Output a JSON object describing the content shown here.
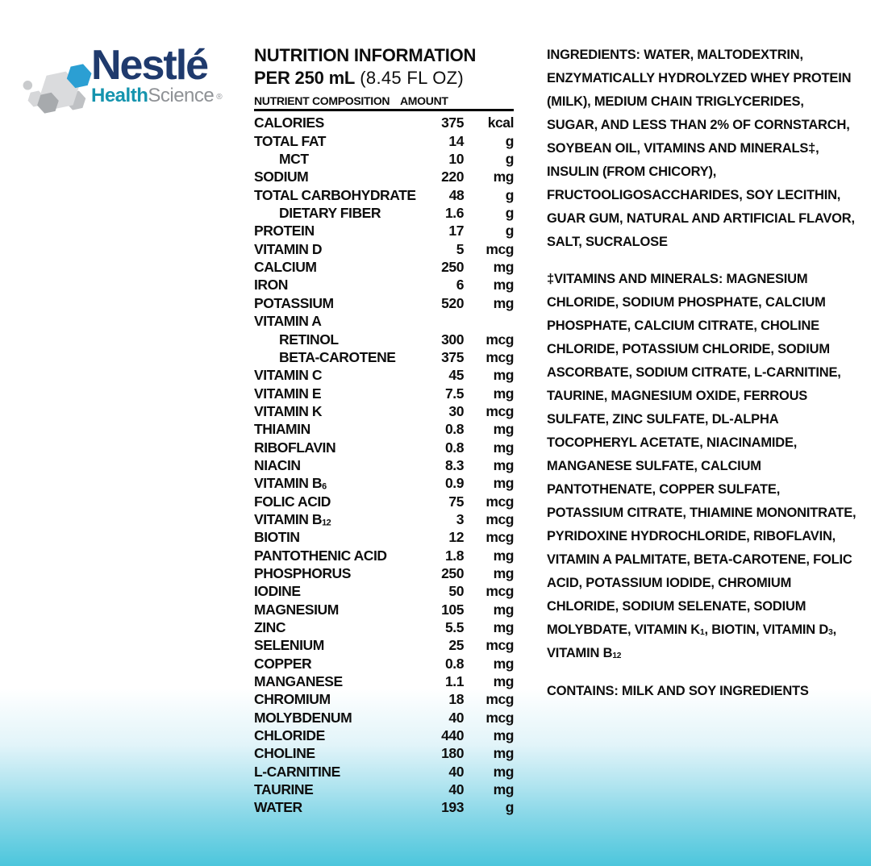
{
  "brand": {
    "nestle": "Nestlé",
    "health": "Health",
    "science": "Science",
    "registered": "®"
  },
  "panel": {
    "title_line1": "NUTRITION INFORMATION",
    "title_line2_bold": "PER 250 mL",
    "title_line2_normal": "(8.45 FL OZ)",
    "col_nutrient": "NUTRIENT COMPOSITION",
    "col_amount": "AMOUNT",
    "rows": [
      {
        "label": "CALORIES",
        "amount": "375",
        "unit": "kcal"
      },
      {
        "label": "TOTAL FAT",
        "amount": "14",
        "unit": "g"
      },
      {
        "label": "MCT",
        "amount": "10",
        "unit": "g",
        "indent": true
      },
      {
        "label": "SODIUM",
        "amount": "220",
        "unit": "mg"
      },
      {
        "label": "TOTAL CARBOHYDRATE",
        "amount": "48",
        "unit": "g"
      },
      {
        "label": "DIETARY FIBER",
        "amount": "1.6",
        "unit": "g",
        "indent": true
      },
      {
        "label": "PROTEIN",
        "amount": "17",
        "unit": "g"
      },
      {
        "label": "VITAMIN D",
        "amount": "5",
        "unit": "mcg"
      },
      {
        "label": "CALCIUM",
        "amount": "250",
        "unit": "mg"
      },
      {
        "label": "IRON",
        "amount": "6",
        "unit": "mg"
      },
      {
        "label": "POTASSIUM",
        "amount": "520",
        "unit": "mg"
      },
      {
        "label": "VITAMIN A",
        "amount": "",
        "unit": ""
      },
      {
        "label": "RETINOL",
        "amount": "300",
        "unit": "mcg",
        "indent": true
      },
      {
        "label": "BETA-CAROTENE",
        "amount": "375",
        "unit": "mcg",
        "indent": true
      },
      {
        "label": "VITAMIN C",
        "amount": "45",
        "unit": "mg"
      },
      {
        "label": "VITAMIN E",
        "amount": "7.5",
        "unit": "mg"
      },
      {
        "label": "VITAMIN K",
        "amount": "30",
        "unit": "mcg"
      },
      {
        "label": "THIAMIN",
        "amount": "0.8",
        "unit": "mg"
      },
      {
        "label": "RIBOFLAVIN",
        "amount": "0.8",
        "unit": "mg"
      },
      {
        "label": "NIACIN",
        "amount": "8.3",
        "unit": "mg"
      },
      {
        "label": "VITAMIN B{6}",
        "amount": "0.9",
        "unit": "mg"
      },
      {
        "label": "FOLIC ACID",
        "amount": "75",
        "unit": "mcg"
      },
      {
        "label": "VITAMIN B{12}",
        "amount": "3",
        "unit": "mcg"
      },
      {
        "label": "BIOTIN",
        "amount": "12",
        "unit": "mcg"
      },
      {
        "label": "PANTOTHENIC ACID",
        "amount": "1.8",
        "unit": "mg"
      },
      {
        "label": "PHOSPHORUS",
        "amount": "250",
        "unit": "mg"
      },
      {
        "label": "IODINE",
        "amount": "50",
        "unit": "mcg"
      },
      {
        "label": "MAGNESIUM",
        "amount": "105",
        "unit": "mg"
      },
      {
        "label": "ZINC",
        "amount": "5.5",
        "unit": "mg"
      },
      {
        "label": "SELENIUM",
        "amount": "25",
        "unit": "mcg"
      },
      {
        "label": "COPPER",
        "amount": "0.8",
        "unit": "mg"
      },
      {
        "label": "MANGANESE",
        "amount": "1.1",
        "unit": "mg"
      },
      {
        "label": "CHROMIUM",
        "amount": "18",
        "unit": "mcg"
      },
      {
        "label": "MOLYBDENUM",
        "amount": "40",
        "unit": "mcg"
      },
      {
        "label": "CHLORIDE",
        "amount": "440",
        "unit": "mg"
      },
      {
        "label": "CHOLINE",
        "amount": "180",
        "unit": "mg"
      },
      {
        "label": "L-CARNITINE",
        "amount": "40",
        "unit": "mg"
      },
      {
        "label": "TAURINE",
        "amount": "40",
        "unit": "mg"
      },
      {
        "label": "WATER",
        "amount": "193",
        "unit": "g"
      }
    ]
  },
  "right": {
    "ingredients_label": "INGREDIENTS:",
    "ingredients_text": "WATER, MALTODEXTRIN, ENZYMATICALLY HYDROLYZED WHEY PROTEIN (MILK), MEDIUM CHAIN TRIGLYCERIDES, SUGAR, AND LESS THAN 2% OF CORNSTARCH, SOYBEAN OIL, VITAMINS AND MINERALS‡, INSULIN (FROM CHICORY), FRUCTOOLIGOSACCHARIDES, SOY LECITHIN, GUAR GUM, NATURAL AND ARTIFICIAL FLAVOR, SALT, SUCRALOSE",
    "vitamins_label": "‡VITAMINS AND MINERALS:",
    "vitamins_text": "MAGNESIUM CHLORIDE, SODIUM PHOSPHATE, CALCIUM PHOSPHATE, CALCIUM CITRATE, CHOLINE CHLORIDE, POTASSIUM CHLORIDE, SODIUM ASCORBATE, SODIUM CITRATE, L-CARNITINE, TAURINE, MAGNESIUM OXIDE, FERROUS SULFATE, ZINC SULFATE, DL-ALPHA TOCOPHERYL ACETATE, NIACINAMIDE, MANGANESE SULFATE, CALCIUM PANTOTHENATE, COPPER SULFATE, POTASSIUM CITRATE, THIAMINE MONONITRATE, PYRIDOXINE HYDROCHLORIDE, RIBOFLAVIN, VITAMIN A PALMITATE, BETA-CAROTENE, FOLIC ACID, POTASSIUM IODIDE, CHROMIUM CHLORIDE, SODIUM SELENATE, SODIUM MOLYBDATE, VITAMIN K{1}, BIOTIN, VITAMIN D{3}, VITAMIN B{12}",
    "contains": "CONTAINS: MILK AND SOY INGREDIENTS"
  },
  "colors": {
    "nestle_navy": "#1f3a6d",
    "health_teal": "#1594ae",
    "science_gray": "#8f9296",
    "hexagon_blue": "#2b9fd3",
    "gradient_bottom": "#4cc6dc",
    "text_black": "#0e0e0e"
  }
}
